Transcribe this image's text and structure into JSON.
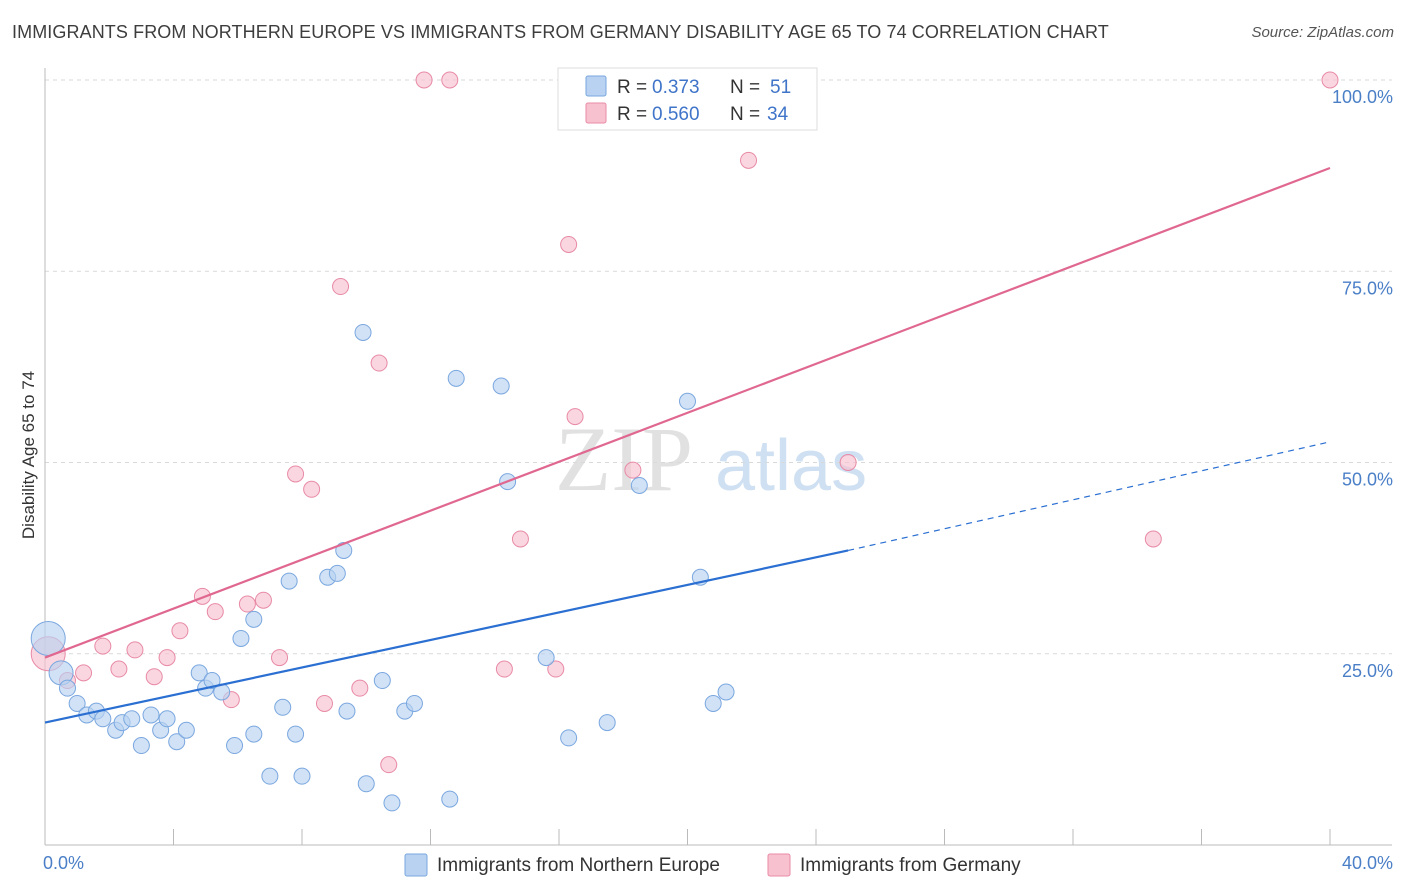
{
  "title": "IMMIGRANTS FROM NORTHERN EUROPE VS IMMIGRANTS FROM GERMANY DISABILITY AGE 65 TO 74 CORRELATION CHART",
  "source": "Source: ZipAtlas.com",
  "watermark": {
    "zip": "ZIP",
    "atlas": "atlas"
  },
  "colors": {
    "blue_fill": "#b9d2f1",
    "blue_stroke": "#7aa7df",
    "blue_line": "#2a6fd1",
    "pink_fill": "#f7c1d0",
    "pink_stroke": "#e88aa6",
    "pink_line": "#e06890",
    "tick_text": "#4a7fc7",
    "grid": "#d9d9d9"
  },
  "legend": {
    "rows": [
      {
        "r_label": "R =",
        "r_value": "0.373",
        "n_label": "N =",
        "n_value": "51"
      },
      {
        "r_label": "R =",
        "r_value": "0.560",
        "n_label": "N =",
        "n_value": "34"
      }
    ]
  },
  "chart_data": {
    "type": "scatter",
    "title": "IMMIGRANTS FROM NORTHERN EUROPE VS IMMIGRANTS FROM GERMANY DISABILITY AGE 65 TO 74 CORRELATION CHART",
    "xlabel": "",
    "ylabel": "Disability Age 65 to 74",
    "xlim": [
      0,
      40
    ],
    "ylim": [
      0,
      100
    ],
    "x_tick_labels": [
      {
        "value": 0,
        "label": "0.0%"
      },
      {
        "value": 40,
        "label": "40.0%"
      }
    ],
    "y_tick_labels": [
      {
        "value": 25,
        "label": "25.0%"
      },
      {
        "value": 50,
        "label": "50.0%"
      },
      {
        "value": 75,
        "label": "75.0%"
      },
      {
        "value": 100,
        "label": "100.0%"
      }
    ],
    "series": [
      {
        "name": "Immigrants from Northern Europe",
        "color": "blue",
        "trend": {
          "x0": 0,
          "y0": 16.0,
          "x1": 25.0,
          "y1": 38.5,
          "dash_to_x": 40,
          "dash_to_y": 52.7
        },
        "points": [
          [
            0.1,
            27,
            1
          ],
          [
            0.5,
            22.5,
            0.7
          ],
          [
            0.7,
            20.5,
            0.5
          ],
          [
            1.0,
            18.5,
            0.5
          ],
          [
            1.3,
            17,
            0.5
          ],
          [
            1.6,
            17.5,
            0.5
          ],
          [
            1.8,
            16.5,
            0.5
          ],
          [
            2.2,
            15,
            0.5
          ],
          [
            2.4,
            16,
            0.5
          ],
          [
            2.7,
            16.5,
            0.5
          ],
          [
            3.0,
            13,
            0.5
          ],
          [
            3.3,
            17,
            0.5
          ],
          [
            3.6,
            15,
            0.5
          ],
          [
            3.8,
            16.5,
            0.5
          ],
          [
            4.1,
            13.5,
            0.5
          ],
          [
            4.4,
            15,
            0.5
          ],
          [
            4.8,
            22.5,
            0.5
          ],
          [
            5.0,
            20.5,
            0.5
          ],
          [
            5.2,
            21.5,
            0.5
          ],
          [
            5.5,
            20,
            0.5
          ],
          [
            5.9,
            13,
            0.5
          ],
          [
            6.1,
            27,
            0.5
          ],
          [
            6.5,
            14.5,
            0.5
          ],
          [
            6.5,
            29.5,
            0.5
          ],
          [
            7.0,
            9,
            0.5
          ],
          [
            7.4,
            18,
            0.5
          ],
          [
            7.6,
            34.5,
            0.5
          ],
          [
            7.8,
            14.5,
            0.5
          ],
          [
            8.0,
            9,
            0.5
          ],
          [
            8.8,
            35,
            0.5
          ],
          [
            9.1,
            35.5,
            0.5
          ],
          [
            9.3,
            38.5,
            0.5
          ],
          [
            9.4,
            17.5,
            0.5
          ],
          [
            9.9,
            67,
            0.5
          ],
          [
            10.0,
            8,
            0.5
          ],
          [
            10.5,
            21.5,
            0.5
          ],
          [
            10.8,
            5.5,
            0.5
          ],
          [
            11.2,
            17.5,
            0.5
          ],
          [
            11.5,
            18.5,
            0.5
          ],
          [
            12.6,
            6,
            0.5
          ],
          [
            12.8,
            61,
            0.5
          ],
          [
            14.2,
            60,
            0.5
          ],
          [
            14.4,
            47.5,
            0.5
          ],
          [
            15.6,
            24.5,
            0.5
          ],
          [
            16.3,
            14,
            0.5
          ],
          [
            17.5,
            16,
            0.5
          ],
          [
            18.5,
            47,
            0.5
          ],
          [
            20.0,
            58,
            0.5
          ],
          [
            20.4,
            35,
            0.5
          ],
          [
            20.8,
            18.5,
            0.5
          ],
          [
            21.2,
            20,
            0.5
          ]
        ]
      },
      {
        "name": "Immigrants from Germany",
        "color": "pink",
        "trend": {
          "x0": 0,
          "y0": 24.5,
          "x1": 40,
          "y1": 88.5
        },
        "points": [
          [
            0.1,
            25,
            1
          ],
          [
            0.7,
            21.5,
            0.5
          ],
          [
            1.2,
            22.5,
            0.5
          ],
          [
            1.8,
            26,
            0.5
          ],
          [
            2.3,
            23,
            0.5
          ],
          [
            2.8,
            25.5,
            0.5
          ],
          [
            3.4,
            22,
            0.5
          ],
          [
            3.8,
            24.5,
            0.5
          ],
          [
            4.2,
            28,
            0.5
          ],
          [
            4.9,
            32.5,
            0.5
          ],
          [
            5.3,
            30.5,
            0.5
          ],
          [
            5.8,
            19,
            0.5
          ],
          [
            6.3,
            31.5,
            0.5
          ],
          [
            6.8,
            32,
            0.5
          ],
          [
            7.3,
            24.5,
            0.5
          ],
          [
            7.8,
            48.5,
            0.5
          ],
          [
            8.3,
            46.5,
            0.5
          ],
          [
            8.7,
            18.5,
            0.5
          ],
          [
            9.2,
            73,
            0.5
          ],
          [
            9.8,
            20.5,
            0.5
          ],
          [
            10.4,
            63,
            0.5
          ],
          [
            10.7,
            10.5,
            0.5
          ],
          [
            11.8,
            100,
            0.5
          ],
          [
            12.6,
            100,
            0.5
          ],
          [
            14.3,
            23,
            0.5
          ],
          [
            14.8,
            40,
            0.5
          ],
          [
            15.9,
            23,
            0.5
          ],
          [
            16.3,
            78.5,
            0.5
          ],
          [
            16.5,
            56,
            0.5
          ],
          [
            18.3,
            49,
            0.5
          ],
          [
            21.9,
            89.5,
            0.5
          ],
          [
            25.0,
            50,
            0.5
          ],
          [
            34.5,
            40,
            0.5
          ],
          [
            40.0,
            100,
            0.5
          ]
        ]
      }
    ],
    "legend_placement": "bottom-center"
  }
}
